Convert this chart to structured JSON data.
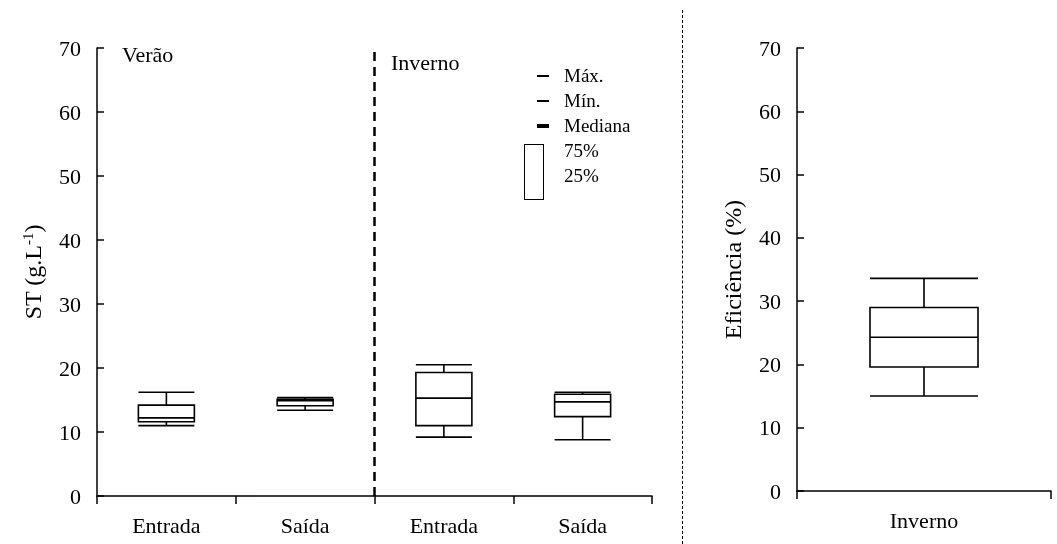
{
  "chart_data": [
    {
      "type": "box",
      "ylabel": "ST (g.L$^{-1}$)",
      "categories": [
        "Entrada",
        "Saída",
        "Entrada",
        "Saída"
      ],
      "boxes": [
        {
          "low": 11.0,
          "q1": 11.6,
          "median": 12.2,
          "q3": 14.2,
          "high": 16.2
        },
        {
          "low": 13.4,
          "q1": 14.1,
          "median": 14.9,
          "q3": 15.1,
          "high": 15.4
        },
        {
          "low": 9.2,
          "q1": 11.0,
          "median": 15.3,
          "q3": 19.3,
          "high": 20.5
        },
        {
          "low": 8.8,
          "q1": 12.4,
          "median": 14.7,
          "q3": 15.9,
          "high": 16.2
        }
      ],
      "ylim": [
        0,
        70
      ],
      "yticks": [
        0,
        10,
        20,
        30,
        40,
        50,
        60,
        70
      ],
      "grid": false,
      "annotations": [
        "Verão",
        "Inverno",
        "Máx.",
        "Mín.",
        "Mediana",
        "75%",
        "25%"
      ]
    },
    {
      "type": "box",
      "ylabel": "Eficiência (%)",
      "categories": [
        "Inverno"
      ],
      "boxes": [
        {
          "low": 15.0,
          "q1": 19.6,
          "median": 24.3,
          "q3": 29.0,
          "high": 33.6
        }
      ],
      "ylim": [
        0,
        70
      ],
      "yticks": [
        0,
        10,
        20,
        30,
        40,
        50,
        60,
        70
      ],
      "grid": false
    }
  ]
}
